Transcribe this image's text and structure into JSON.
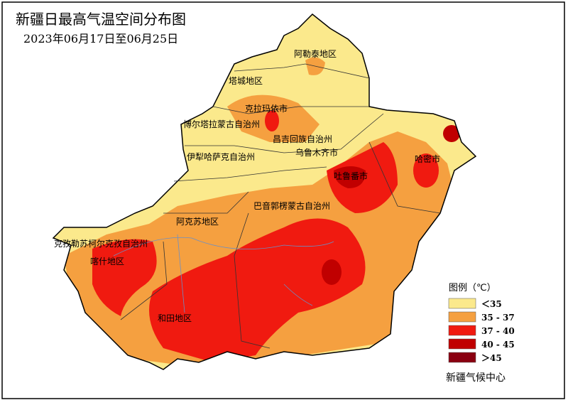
{
  "header": {
    "title": "新疆日最高气温空间分布图",
    "subtitle": "2023年06月17日至06月25日"
  },
  "regions": [
    {
      "label": "阿勒泰地区"
    },
    {
      "label": "塔城地区"
    },
    {
      "label": "克拉玛依市"
    },
    {
      "label": "博尔塔拉蒙古自治州"
    },
    {
      "label": "昌吉回族自治州"
    },
    {
      "label": "乌鲁木齐市"
    },
    {
      "label": "伊犁哈萨克自治州"
    },
    {
      "label": "吐鲁番市"
    },
    {
      "label": "哈密市"
    },
    {
      "label": "巴音郭楞蒙古自治州"
    },
    {
      "label": "阿克苏地区"
    },
    {
      "label": "克孜勒苏柯尔克孜自治州"
    },
    {
      "label": "喀什地区"
    },
    {
      "label": "和田地区"
    }
  ],
  "legend": {
    "title": "图例（℃）",
    "items": [
      {
        "label": "＜35",
        "color": "#fbe98c"
      },
      {
        "label": "35 - 37",
        "color": "#f5a040"
      },
      {
        "label": "37 - 40",
        "color": "#f01a10"
      },
      {
        "label": "40 - 45",
        "color": "#c00000"
      },
      {
        "label": "＞45",
        "color": "#8a0010"
      }
    ]
  },
  "source": "新疆气候中心"
}
